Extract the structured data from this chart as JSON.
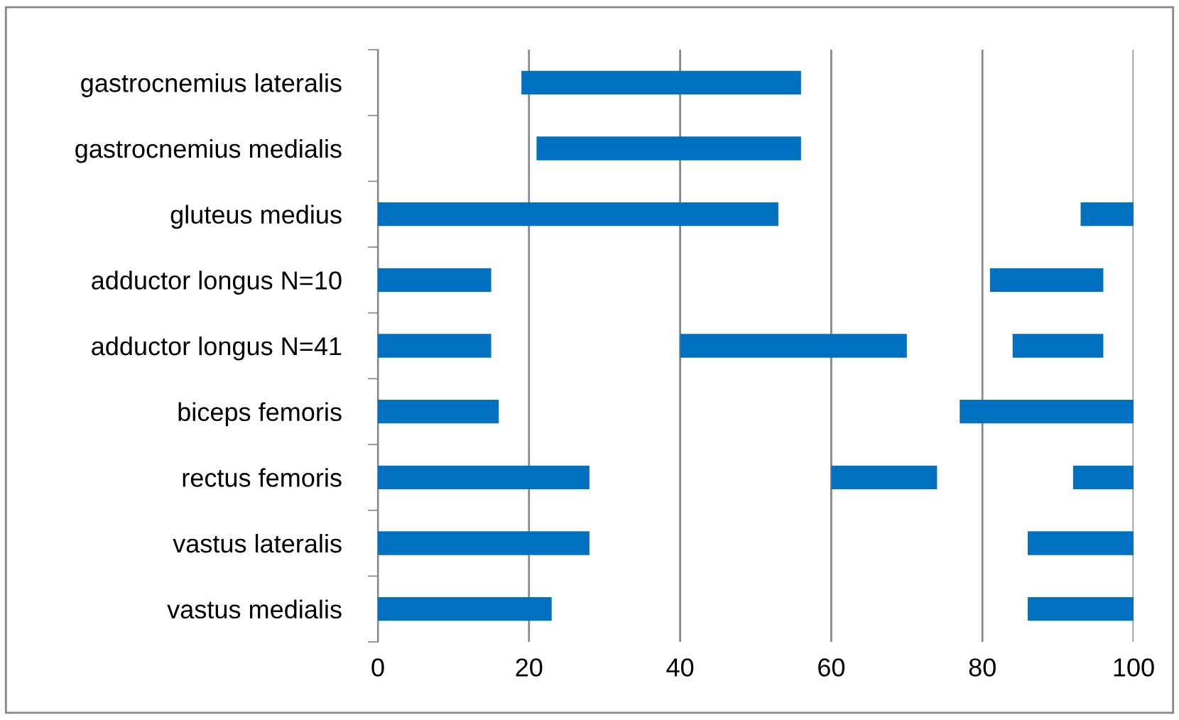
{
  "chart_data": {
    "type": "bar",
    "orientation": "horizontal",
    "categories": [
      "gastrocnemius lateralis",
      "gastrocnemius medialis",
      "gluteus medius",
      "adductor longus N=10",
      "adductor longus N=41",
      "biceps femoris",
      "rectus femoris",
      "vastus lateralis",
      "vastus medialis"
    ],
    "series": [
      {
        "color": "#0070c0",
        "base": [
          19,
          21,
          0,
          0,
          0,
          0,
          0,
          0,
          0
        ],
        "values": [
          37,
          35,
          53,
          15,
          15,
          16,
          28,
          28,
          23
        ]
      },
      {
        "color": "#0070c0",
        "base": [
          null,
          null,
          93,
          81,
          40,
          77,
          60,
          86,
          86
        ],
        "values": [
          null,
          null,
          7,
          15,
          30,
          23,
          14,
          14,
          14
        ]
      },
      {
        "color": "#0070c0",
        "base": [
          null,
          null,
          null,
          null,
          84,
          null,
          92,
          null,
          null
        ],
        "values": [
          null,
          null,
          null,
          null,
          12,
          null,
          8,
          null,
          null
        ]
      }
    ],
    "xlim": [
      0,
      100
    ],
    "xticks": [
      0,
      20,
      40,
      60,
      80,
      100
    ],
    "grid": "x",
    "legend": false
  }
}
